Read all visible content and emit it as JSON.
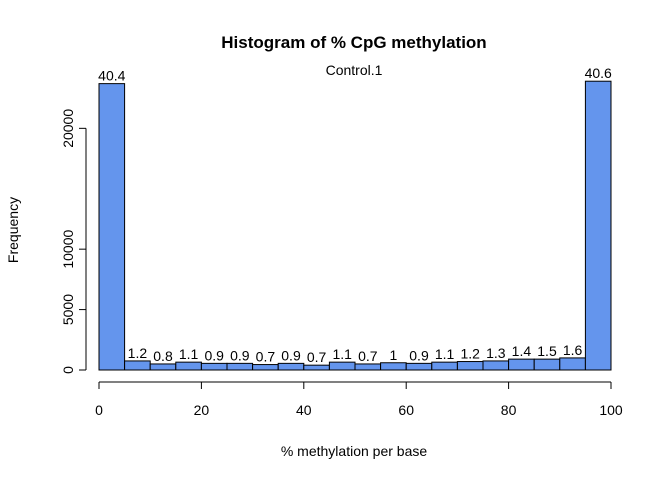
{
  "chart_data": {
    "type": "bar",
    "title": "Histogram of % CpG methylation",
    "subtitle": "Control.1",
    "xlabel": "% methylation per base",
    "ylabel": "Frequency",
    "bar_color": "#6495ED",
    "bin_edges": [
      0,
      5,
      10,
      15,
      20,
      25,
      30,
      35,
      40,
      45,
      50,
      55,
      60,
      65,
      70,
      75,
      80,
      85,
      90,
      95,
      100
    ],
    "values": [
      23700,
      750,
      500,
      650,
      550,
      550,
      450,
      550,
      400,
      650,
      500,
      600,
      550,
      650,
      700,
      750,
      900,
      900,
      1000,
      23900
    ],
    "labels": [
      "40.4",
      "1.2",
      "0.8",
      "1.1",
      "0.9",
      "0.9",
      "0.7",
      "0.9",
      "0.7",
      "1.1",
      "0.7",
      "1",
      "0.9",
      "1.1",
      "1.2",
      "1.3",
      "1.4",
      "1.5",
      "1.6",
      "40.6"
    ],
    "xlim": [
      0,
      100
    ],
    "ylim": [
      0,
      24000
    ],
    "xticks": [
      0,
      20,
      40,
      60,
      80,
      100
    ],
    "yticks": [
      0,
      5000,
      10000,
      20000
    ]
  }
}
